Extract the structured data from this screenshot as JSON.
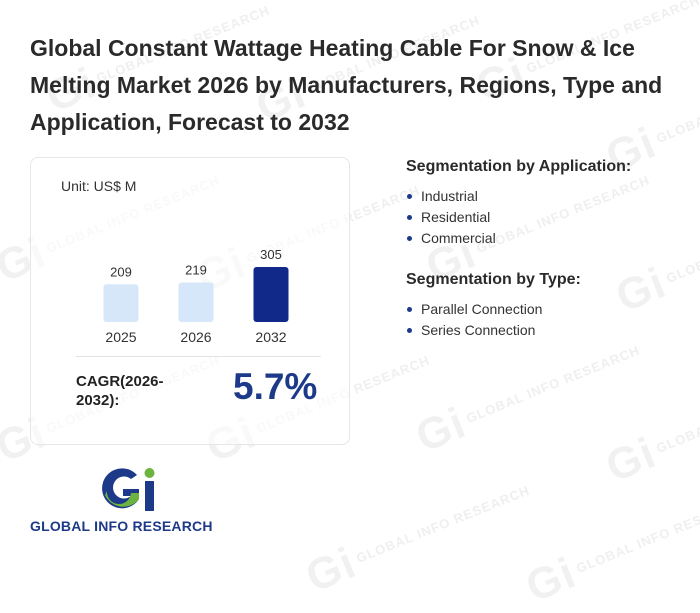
{
  "title": "Global Constant Wattage Heating Cable For Snow & Ice Melting Market 2026 by Manufacturers, Regions, Type and Application, Forecast to 2032",
  "unit_label": "Unit: US$ M",
  "cagr": {
    "label": "CAGR(2026-2032):",
    "value": "5.7%"
  },
  "chart_data": {
    "type": "bar",
    "categories": [
      "2025",
      "2026",
      "2032"
    ],
    "values": [
      209,
      219,
      305
    ],
    "ylim": [
      0,
      305
    ],
    "colors": [
      "#d6e7f9",
      "#d6e7f9",
      "#112a8a"
    ],
    "ylabel": "",
    "xlabel": ""
  },
  "segmentation": {
    "application": {
      "heading": "Segmentation by Application:",
      "items": [
        "Industrial",
        "Residential",
        "Commercial"
      ]
    },
    "type": {
      "heading": "Segmentation by Type:",
      "items": [
        "Parallel Connection",
        "Series Connection"
      ]
    }
  },
  "logo": {
    "text": "GLOBAL INFO RESEARCH",
    "colors": {
      "g": "#1d3a8a",
      "i": "#6cb33f"
    }
  },
  "watermark": {
    "text": "GLOBAL INFO RESEARCH",
    "mark": "Gi"
  }
}
